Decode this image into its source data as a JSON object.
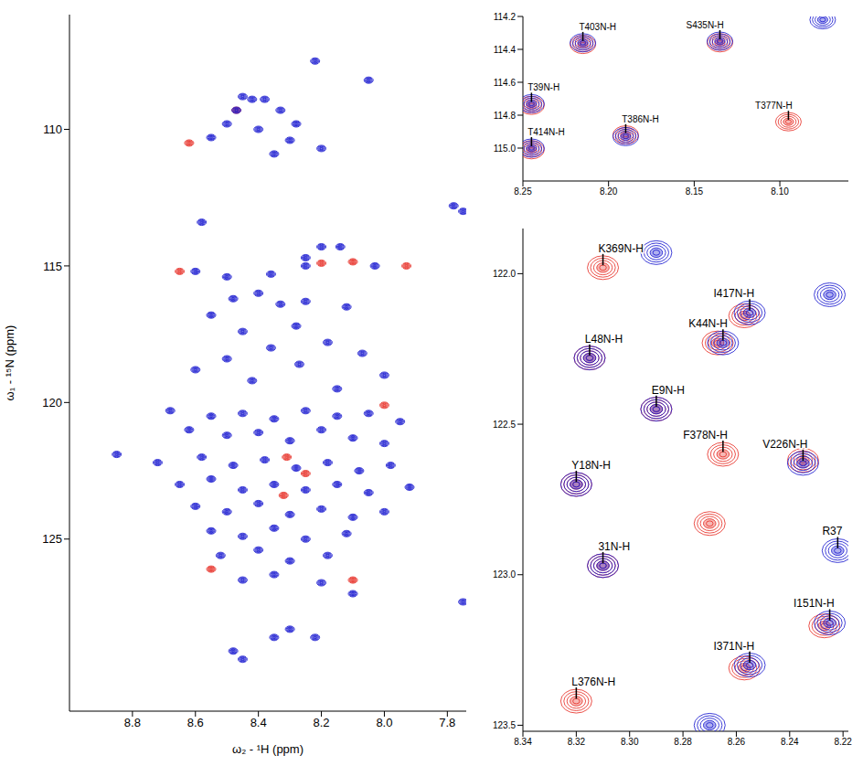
{
  "chart_data": [
    {
      "type": "scatter",
      "x_label": "ω₂ - ¹H (ppm)",
      "y_label": "ω₁ - ¹⁵N (ppm)",
      "grid": false,
      "xlim": [
        9.0,
        7.74
      ],
      "ylim": [
        131.3,
        105.8
      ],
      "xticks": [
        8.8,
        8.6,
        8.4,
        8.2,
        {
          "value": 8.0,
          "label": "8.0"
        },
        7.8
      ],
      "yticks": [
        110,
        115,
        120,
        125
      ],
      "series": [
        {
          "color": "#e8332a",
          "points": [
            [
              8.62,
              110.5
            ],
            [
              8.2,
              114.9
            ],
            [
              8.1,
              114.85
            ],
            [
              7.93,
              115.0
            ],
            [
              8.32,
              123.4
            ],
            [
              8.31,
              122.0
            ],
            [
              8.55,
              126.1
            ],
            [
              8.1,
              126.5
            ],
            [
              8.0,
              120.1
            ],
            [
              8.65,
              115.2
            ],
            [
              8.47,
              109.3
            ],
            [
              8.25,
              122.6
            ]
          ]
        },
        {
          "color": "#1c1cd0",
          "points": [
            [
              8.22,
              107.5
            ],
            [
              8.45,
              108.8
            ],
            [
              8.42,
              108.9
            ],
            [
              8.38,
              108.9
            ],
            [
              8.33,
              109.3
            ],
            [
              8.47,
              109.3
            ],
            [
              8.5,
              109.8
            ],
            [
              8.28,
              109.8
            ],
            [
              8.4,
              110.0
            ],
            [
              8.55,
              110.3
            ],
            [
              8.3,
              110.4
            ],
            [
              8.2,
              110.7
            ],
            [
              8.35,
              110.9
            ],
            [
              8.05,
              108.2
            ],
            [
              8.58,
              113.4
            ],
            [
              7.78,
              112.8
            ],
            [
              7.75,
              113.0
            ],
            [
              8.2,
              114.3
            ],
            [
              8.14,
              114.3
            ],
            [
              8.25,
              114.7
            ],
            [
              8.25,
              115.0
            ],
            [
              8.6,
              115.2
            ],
            [
              8.5,
              115.4
            ],
            [
              8.36,
              115.3
            ],
            [
              8.03,
              115.0
            ],
            [
              8.48,
              116.2
            ],
            [
              8.4,
              116.0
            ],
            [
              8.33,
              116.4
            ],
            [
              8.25,
              116.3
            ],
            [
              8.12,
              116.5
            ],
            [
              8.55,
              116.8
            ],
            [
              8.28,
              117.2
            ],
            [
              8.45,
              117.4
            ],
            [
              8.18,
              117.8
            ],
            [
              8.36,
              118.0
            ],
            [
              8.07,
              118.2
            ],
            [
              8.5,
              118.4
            ],
            [
              8.27,
              118.6
            ],
            [
              8.6,
              118.8
            ],
            [
              8.0,
              119.0
            ],
            [
              8.42,
              119.2
            ],
            [
              8.15,
              119.5
            ],
            [
              8.68,
              120.3
            ],
            [
              8.55,
              120.5
            ],
            [
              8.45,
              120.4
            ],
            [
              8.35,
              120.6
            ],
            [
              8.25,
              120.3
            ],
            [
              8.15,
              120.5
            ],
            [
              8.05,
              120.4
            ],
            [
              7.95,
              120.7
            ],
            [
              8.62,
              121.0
            ],
            [
              8.5,
              121.2
            ],
            [
              8.4,
              121.1
            ],
            [
              8.3,
              121.4
            ],
            [
              8.2,
              121.0
            ],
            [
              8.1,
              121.3
            ],
            [
              8.0,
              121.5
            ],
            [
              8.85,
              121.9
            ],
            [
              8.72,
              122.2
            ],
            [
              8.58,
              122.0
            ],
            [
              8.48,
              122.3
            ],
            [
              8.38,
              122.1
            ],
            [
              8.28,
              122.4
            ],
            [
              8.18,
              122.2
            ],
            [
              8.08,
              122.5
            ],
            [
              7.98,
              122.3
            ],
            [
              8.65,
              123.0
            ],
            [
              8.55,
              122.8
            ],
            [
              8.45,
              123.2
            ],
            [
              8.35,
              123.0
            ],
            [
              8.25,
              123.2
            ],
            [
              8.15,
              123.0
            ],
            [
              8.05,
              123.3
            ],
            [
              7.92,
              123.1
            ],
            [
              8.6,
              123.8
            ],
            [
              8.5,
              124.0
            ],
            [
              8.4,
              123.7
            ],
            [
              8.3,
              124.1
            ],
            [
              8.2,
              123.9
            ],
            [
              8.1,
              124.2
            ],
            [
              8.0,
              124.0
            ],
            [
              8.55,
              124.7
            ],
            [
              8.45,
              124.9
            ],
            [
              8.35,
              124.6
            ],
            [
              8.25,
              125.0
            ],
            [
              8.12,
              124.8
            ],
            [
              8.52,
              125.6
            ],
            [
              8.4,
              125.4
            ],
            [
              8.3,
              125.8
            ],
            [
              8.18,
              125.6
            ],
            [
              8.45,
              126.5
            ],
            [
              8.35,
              126.3
            ],
            [
              8.2,
              126.6
            ],
            [
              7.75,
              127.3
            ],
            [
              8.3,
              128.3
            ],
            [
              8.22,
              128.6
            ],
            [
              8.35,
              128.6
            ],
            [
              8.48,
              129.1
            ],
            [
              8.45,
              129.4
            ],
            [
              8.1,
              127.0
            ]
          ]
        }
      ],
      "annotations": []
    },
    {
      "type": "scatter",
      "grid": false,
      "xlim": [
        8.25,
        8.06
      ],
      "ylim": [
        115.2,
        114.2
      ],
      "xticks": [
        8.25,
        {
          "value": 8.2,
          "label": "8.20"
        },
        8.15,
        {
          "value": 8.1,
          "label": "8.10"
        }
      ],
      "yticks": [
        114.2,
        114.4,
        114.6,
        114.8,
        {
          "value": 115,
          "label": "115.0"
        }
      ],
      "series": [
        {
          "color": "#e8332a",
          "points": [
            [
              8.215,
              114.37
            ],
            [
              8.135,
              114.36
            ],
            [
              8.245,
              114.74
            ],
            [
              8.245,
              115.01
            ],
            [
              8.19,
              114.92
            ],
            [
              8.095,
              114.84
            ]
          ]
        },
        {
          "color": "#1c1cd0",
          "points": [
            [
              8.215,
              114.36
            ],
            [
              8.135,
              114.35
            ],
            [
              8.245,
              114.73
            ],
            [
              8.245,
              115.0
            ],
            [
              8.19,
              114.93
            ],
            [
              8.075,
              114.22
            ]
          ]
        }
      ],
      "annotations": [
        {
          "text": "T403N-H",
          "x": 8.215,
          "y": 114.36
        },
        {
          "text": "S435N-H",
          "x": 8.135,
          "y": 114.35
        },
        {
          "text": "T39N-H",
          "x": 8.245,
          "y": 114.73
        },
        {
          "text": "T414N-H",
          "x": 8.245,
          "y": 115.0
        },
        {
          "text": "T386N-H",
          "x": 8.19,
          "y": 114.92
        },
        {
          "text": "T377N-H",
          "x": 8.095,
          "y": 114.84
        }
      ]
    },
    {
      "type": "scatter",
      "grid": false,
      "xlim": [
        8.34,
        8.218
      ],
      "ylim": [
        123.52,
        121.85
      ],
      "xticks": [
        8.34,
        8.32,
        {
          "value": 8.3,
          "label": "8.30"
        },
        8.28,
        8.26,
        8.24,
        8.22
      ],
      "yticks": [
        {
          "value": 122,
          "label": "122.0"
        },
        122.5,
        {
          "value": 123,
          "label": "123.0"
        },
        123.5
      ],
      "series": [
        {
          "color": "#e8332a",
          "points": [
            [
              8.31,
              121.98
            ],
            [
              8.315,
              122.28
            ],
            [
              8.29,
              122.45
            ],
            [
              8.267,
              122.23
            ],
            [
              8.257,
              122.14
            ],
            [
              8.235,
              122.62
            ],
            [
              8.265,
              122.6
            ],
            [
              8.32,
              122.7
            ],
            [
              8.31,
              122.97
            ],
            [
              8.227,
              123.17
            ],
            [
              8.257,
              123.31
            ],
            [
              8.32,
              123.42
            ],
            [
              8.27,
              122.83
            ]
          ]
        },
        {
          "color": "#1c1cd0",
          "points": [
            [
              8.315,
              122.28
            ],
            [
              8.29,
              122.45
            ],
            [
              8.265,
              122.23
            ],
            [
              8.255,
              122.13
            ],
            [
              8.235,
              122.63
            ],
            [
              8.32,
              122.7
            ],
            [
              8.31,
              122.97
            ],
            [
              8.225,
              123.16
            ],
            [
              8.255,
              123.3
            ],
            [
              8.29,
              121.93
            ],
            [
              8.225,
              122.07
            ],
            [
              8.27,
              123.5
            ],
            [
              8.222,
              122.92
            ]
          ]
        }
      ],
      "annotations": [
        {
          "text": "K369N-H",
          "x": 8.31,
          "y": 121.98
        },
        {
          "text": "I417N-H",
          "x": 8.255,
          "y": 122.13
        },
        {
          "text": "K44N-H",
          "x": 8.265,
          "y": 122.23
        },
        {
          "text": "L48N-H",
          "x": 8.315,
          "y": 122.28
        },
        {
          "text": "E9N-H",
          "x": 8.29,
          "y": 122.45
        },
        {
          "text": "V226N-H",
          "x": 8.235,
          "y": 122.63
        },
        {
          "text": "F378N-H",
          "x": 8.265,
          "y": 122.6
        },
        {
          "text": "Y18N-H",
          "x": 8.32,
          "y": 122.7
        },
        {
          "text": "31N-H",
          "x": 8.31,
          "y": 122.97
        },
        {
          "text": "I151N-H",
          "x": 8.225,
          "y": 123.16
        },
        {
          "text": "I371N-H",
          "x": 8.255,
          "y": 123.3
        },
        {
          "text": "L376N-H",
          "x": 8.32,
          "y": 123.42
        },
        {
          "text": "R37",
          "x": 8.222,
          "y": 122.92
        }
      ]
    }
  ]
}
